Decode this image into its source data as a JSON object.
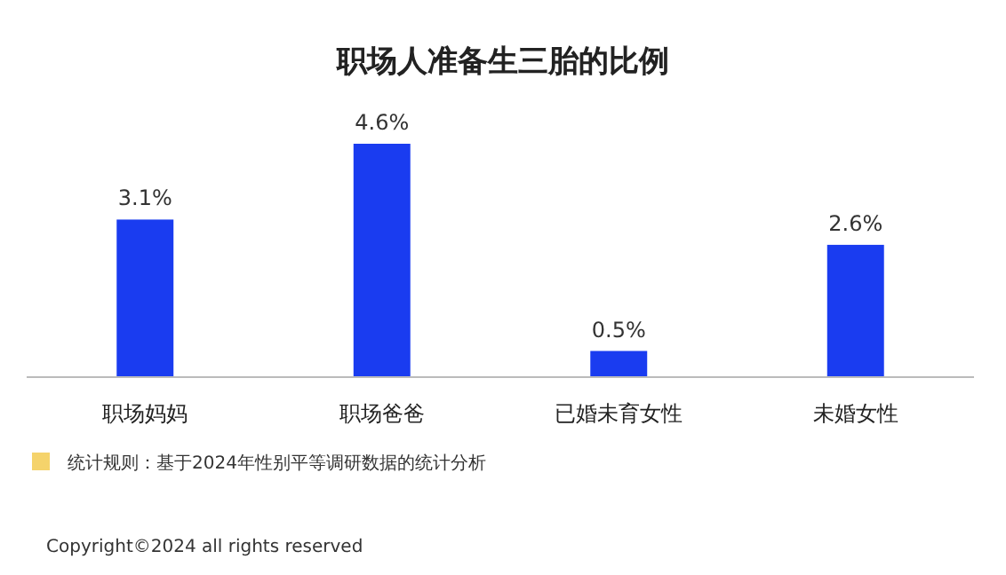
{
  "chart_data": {
    "type": "bar",
    "title": "职场人准备生三胎的比例",
    "categories": [
      "职场妈妈",
      "职场爸爸",
      "已婚未育女性",
      "未婚女性"
    ],
    "values": [
      3.1,
      4.6,
      0.5,
      2.6
    ],
    "color": "#1a3cf0",
    "value_labels": [
      "3.1%",
      "4.6%",
      "0.5%",
      "2.6%"
    ],
    "annotations": [
      "统计规则：基于2024年性别平等调研数据的统计分析",
      "Copyright©2024 all rights reserved"
    ]
  }
}
